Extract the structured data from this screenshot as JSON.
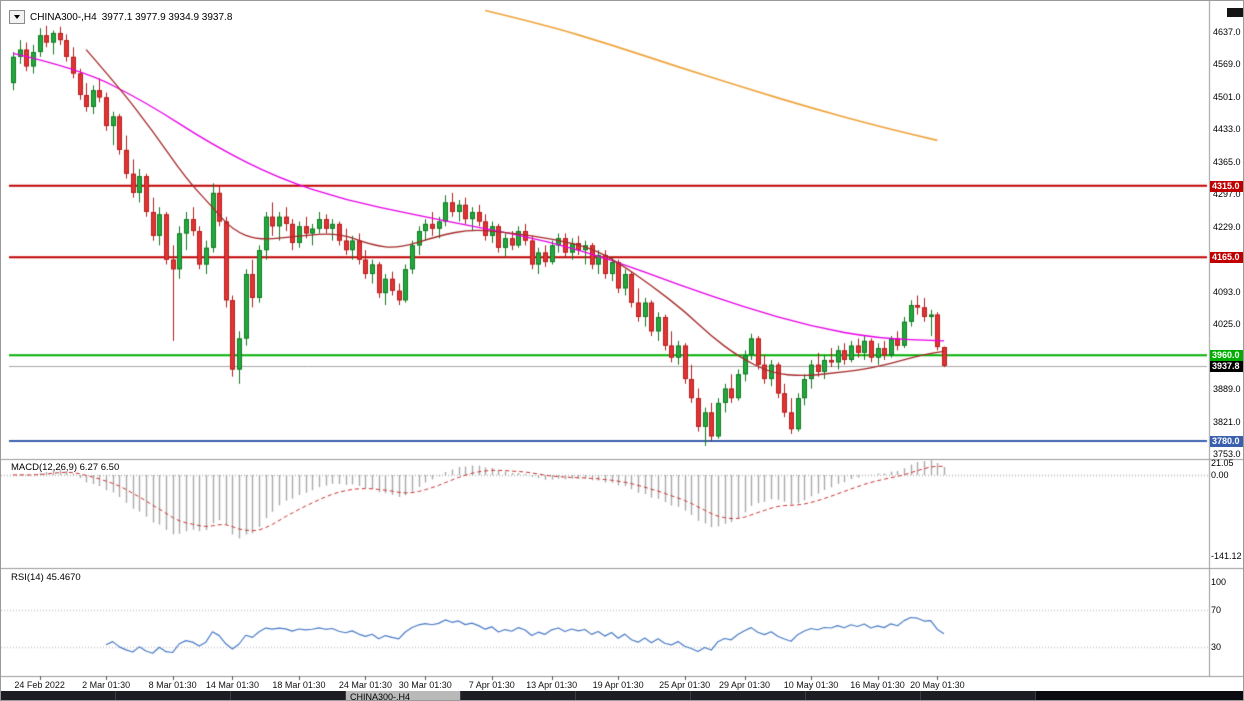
{
  "header": {
    "symbol": "CHINA300-,H4",
    "ohlc": "3977.1 3977.9 3934.9 3937.8"
  },
  "price_axis": {
    "values": [
      4637.0,
      4569.0,
      4501.0,
      4433.0,
      4365.0,
      4297.0,
      4229.0,
      4161.0,
      4093.0,
      4025.0,
      3957.0,
      3889.0,
      3821.0,
      3753.0
    ]
  },
  "taskbar": {
    "tabs": [
      {
        "label": "",
        "active": false
      },
      {
        "label": "",
        "active": false
      },
      {
        "label": "",
        "active": false
      },
      {
        "label": "CHINA300-,H4",
        "active": true
      },
      {
        "label": "",
        "active": false
      },
      {
        "label": "",
        "active": false
      },
      {
        "label": "",
        "active": false
      },
      {
        "label": "",
        "active": false
      },
      {
        "label": "",
        "active": false
      }
    ]
  },
  "chart_data": {
    "type": "candlestick",
    "title": "CHINA300-,H4",
    "ylim": [
      3753,
      4680
    ],
    "colors": {
      "up": "#22a93c",
      "up_border": "#147a24",
      "down": "#e23434",
      "down_border": "#b51f1f",
      "background": "#ffffff"
    },
    "levels": [
      {
        "price": 4315.0,
        "color": "#c00000"
      },
      {
        "price": 4165.0,
        "color": "#c00000"
      },
      {
        "price": 3960.0,
        "color": "#00ae00"
      },
      {
        "price": 3780.0,
        "color": "#3a5fad"
      }
    ],
    "current_price": 3937.8,
    "x_labels": [
      {
        "text": "24 Feb 2022",
        "i": 4
      },
      {
        "text": "2 Mar 01:30",
        "i": 14
      },
      {
        "text": "8 Mar 01:30",
        "i": 24
      },
      {
        "text": "14 Mar 01:30",
        "i": 33
      },
      {
        "text": "18 Mar 01:30",
        "i": 43
      },
      {
        "text": "24 Mar 01:30",
        "i": 53
      },
      {
        "text": "30 Mar 01:30",
        "i": 62
      },
      {
        "text": "7 Apr 01:30",
        "i": 72
      },
      {
        "text": "13 Apr 01:30",
        "i": 81
      },
      {
        "text": "19 Apr 01:30",
        "i": 91
      },
      {
        "text": "25 Apr 01:30",
        "i": 101
      },
      {
        "text": "29 Apr 01:30",
        "i": 110
      },
      {
        "text": "10 May 01:30",
        "i": 120
      },
      {
        "text": "16 May 01:30",
        "i": 130
      },
      {
        "text": "20 May 01:30",
        "i": 139
      }
    ],
    "candles": [
      [
        4530,
        4595,
        4515,
        4585
      ],
      [
        4585,
        4620,
        4570,
        4600
      ],
      [
        4600,
        4615,
        4555,
        4565
      ],
      [
        4565,
        4610,
        4550,
        4595
      ],
      [
        4595,
        4645,
        4585,
        4630
      ],
      [
        4630,
        4650,
        4605,
        4615
      ],
      [
        4615,
        4640,
        4590,
        4635
      ],
      [
        4635,
        4648,
        4610,
        4620
      ],
      [
        4620,
        4632,
        4575,
        4585
      ],
      [
        4585,
        4605,
        4540,
        4550
      ],
      [
        4550,
        4560,
        4495,
        4505
      ],
      [
        4505,
        4530,
        4470,
        4480
      ],
      [
        4480,
        4525,
        4465,
        4515
      ],
      [
        4515,
        4540,
        4490,
        4500
      ],
      [
        4500,
        4510,
        4430,
        4440
      ],
      [
        4440,
        4470,
        4400,
        4460
      ],
      [
        4460,
        4465,
        4380,
        4390
      ],
      [
        4390,
        4420,
        4330,
        4340
      ],
      [
        4340,
        4370,
        4290,
        4300
      ],
      [
        4300,
        4350,
        4280,
        4335
      ],
      [
        4335,
        4340,
        4250,
        4260
      ],
      [
        4260,
        4290,
        4200,
        4210
      ],
      [
        4210,
        4270,
        4190,
        4255
      ],
      [
        4255,
        4260,
        4150,
        4160
      ],
      [
        4160,
        4190,
        3990,
        4140
      ],
      [
        4140,
        4230,
        4120,
        4215
      ],
      [
        4215,
        4260,
        4180,
        4245
      ],
      [
        4245,
        4270,
        4210,
        4220
      ],
      [
        4220,
        4230,
        4140,
        4150
      ],
      [
        4150,
        4200,
        4130,
        4185
      ],
      [
        4185,
        4320,
        4175,
        4300
      ],
      [
        4300,
        4315,
        4230,
        4240
      ],
      [
        4240,
        4250,
        4060,
        4075
      ],
      [
        4075,
        4085,
        3915,
        3930
      ],
      [
        3930,
        4010,
        3900,
        3995
      ],
      [
        3995,
        4140,
        3980,
        4130
      ],
      [
        4130,
        4160,
        4060,
        4080
      ],
      [
        4080,
        4190,
        4070,
        4180
      ],
      [
        4180,
        4260,
        4160,
        4250
      ],
      [
        4250,
        4280,
        4210,
        4230
      ],
      [
        4230,
        4260,
        4200,
        4250
      ],
      [
        4250,
        4270,
        4220,
        4235
      ],
      [
        4235,
        4245,
        4180,
        4195
      ],
      [
        4195,
        4240,
        4185,
        4230
      ],
      [
        4230,
        4250,
        4205,
        4215
      ],
      [
        4215,
        4235,
        4190,
        4225
      ],
      [
        4225,
        4260,
        4215,
        4245
      ],
      [
        4245,
        4255,
        4215,
        4225
      ],
      [
        4225,
        4245,
        4200,
        4235
      ],
      [
        4235,
        4240,
        4190,
        4200
      ],
      [
        4200,
        4225,
        4170,
        4180
      ],
      [
        4180,
        4210,
        4160,
        4200
      ],
      [
        4200,
        4215,
        4150,
        4160
      ],
      [
        4160,
        4180,
        4120,
        4130
      ],
      [
        4130,
        4160,
        4110,
        4150
      ],
      [
        4150,
        4155,
        4080,
        4090
      ],
      [
        4090,
        4130,
        4065,
        4120
      ],
      [
        4120,
        4135,
        4085,
        4095
      ],
      [
        4095,
        4110,
        4065,
        4075
      ],
      [
        4075,
        4150,
        4070,
        4140
      ],
      [
        4140,
        4200,
        4130,
        4190
      ],
      [
        4190,
        4230,
        4170,
        4220
      ],
      [
        4220,
        4245,
        4200,
        4235
      ],
      [
        4235,
        4260,
        4210,
        4225
      ],
      [
        4225,
        4250,
        4205,
        4240
      ],
      [
        4240,
        4295,
        4230,
        4280
      ],
      [
        4280,
        4300,
        4250,
        4260
      ],
      [
        4260,
        4285,
        4240,
        4275
      ],
      [
        4275,
        4290,
        4235,
        4245
      ],
      [
        4245,
        4270,
        4220,
        4260
      ],
      [
        4260,
        4275,
        4230,
        4240
      ],
      [
        4240,
        4255,
        4200,
        4210
      ],
      [
        4210,
        4240,
        4195,
        4230
      ],
      [
        4230,
        4235,
        4175,
        4185
      ],
      [
        4185,
        4215,
        4165,
        4205
      ],
      [
        4205,
        4220,
        4180,
        4190
      ],
      [
        4190,
        4230,
        4185,
        4220
      ],
      [
        4220,
        4235,
        4190,
        4200
      ],
      [
        4200,
        4210,
        4140,
        4150
      ],
      [
        4150,
        4185,
        4130,
        4175
      ],
      [
        4175,
        4190,
        4145,
        4155
      ],
      [
        4155,
        4200,
        4150,
        4190
      ],
      [
        4190,
        4215,
        4175,
        4205
      ],
      [
        4205,
        4215,
        4165,
        4175
      ],
      [
        4175,
        4205,
        4160,
        4195
      ],
      [
        4195,
        4210,
        4170,
        4180
      ],
      [
        4180,
        4200,
        4150,
        4190
      ],
      [
        4190,
        4195,
        4140,
        4150
      ],
      [
        4150,
        4180,
        4130,
        4170
      ],
      [
        4170,
        4180,
        4120,
        4130
      ],
      [
        4130,
        4165,
        4115,
        4155
      ],
      [
        4155,
        4160,
        4090,
        4100
      ],
      [
        4100,
        4140,
        4085,
        4130
      ],
      [
        4130,
        4135,
        4060,
        4070
      ],
      [
        4070,
        4100,
        4030,
        4040
      ],
      [
        4040,
        4080,
        4020,
        4070
      ],
      [
        4070,
        4075,
        4000,
        4010
      ],
      [
        4010,
        4050,
        3990,
        4040
      ],
      [
        4040,
        4045,
        3970,
        3980
      ],
      [
        3980,
        4010,
        3945,
        3955
      ],
      [
        3955,
        3990,
        3940,
        3980
      ],
      [
        3980,
        3985,
        3900,
        3910
      ],
      [
        3910,
        3940,
        3860,
        3870
      ],
      [
        3870,
        3890,
        3800,
        3810
      ],
      [
        3810,
        3850,
        3770,
        3840
      ],
      [
        3840,
        3860,
        3780,
        3790
      ],
      [
        3790,
        3870,
        3785,
        3860
      ],
      [
        3860,
        3900,
        3840,
        3890
      ],
      [
        3890,
        3920,
        3860,
        3870
      ],
      [
        3870,
        3930,
        3865,
        3920
      ],
      [
        3920,
        3970,
        3905,
        3960
      ],
      [
        3960,
        4005,
        3950,
        3995
      ],
      [
        3995,
        4000,
        3930,
        3940
      ],
      [
        3940,
        3960,
        3900,
        3910
      ],
      [
        3910,
        3950,
        3895,
        3940
      ],
      [
        3940,
        3945,
        3870,
        3880
      ],
      [
        3880,
        3900,
        3830,
        3840
      ],
      [
        3840,
        3870,
        3795,
        3805
      ],
      [
        3805,
        3880,
        3800,
        3870
      ],
      [
        3870,
        3920,
        3855,
        3910
      ],
      [
        3910,
        3950,
        3890,
        3940
      ],
      [
        3940,
        3965,
        3915,
        3925
      ],
      [
        3925,
        3960,
        3910,
        3950
      ],
      [
        3950,
        3975,
        3935,
        3945
      ],
      [
        3945,
        3980,
        3930,
        3970
      ],
      [
        3970,
        3985,
        3940,
        3950
      ],
      [
        3950,
        3990,
        3945,
        3980
      ],
      [
        3980,
        3995,
        3955,
        3965
      ],
      [
        3965,
        4000,
        3950,
        3990
      ],
      [
        3990,
        3995,
        3945,
        3955
      ],
      [
        3955,
        3985,
        3940,
        3975
      ],
      [
        3975,
        3990,
        3950,
        3960
      ],
      [
        3960,
        4000,
        3955,
        3995
      ],
      [
        3995,
        4010,
        3970,
        3980
      ],
      [
        3980,
        4040,
        3975,
        4030
      ],
      [
        4030,
        4075,
        4020,
        4065
      ],
      [
        4065,
        4085,
        4045,
        4060
      ],
      [
        4060,
        4080,
        4030,
        4040
      ],
      [
        4040,
        4055,
        4000,
        4045
      ],
      [
        4045,
        4050,
        3970,
        3977
      ],
      [
        3977.1,
        3977.9,
        3934.9,
        3937.8
      ]
    ],
    "overlays": [
      {
        "name": "ma-magenta",
        "color": "#e800e8",
        "width": 1.3,
        "points": [
          [
            0,
            4592
          ],
          [
            10,
            4560
          ],
          [
            20,
            4490
          ],
          [
            30,
            4400
          ],
          [
            40,
            4330
          ],
          [
            50,
            4285
          ],
          [
            60,
            4255
          ],
          [
            70,
            4228
          ],
          [
            80,
            4200
          ],
          [
            90,
            4160
          ],
          [
            100,
            4108
          ],
          [
            110,
            4060
          ],
          [
            120,
            4020
          ],
          [
            130,
            3995
          ],
          [
            140,
            3990
          ]
        ]
      },
      {
        "name": "ma-dark-red",
        "color": "#a52a2a",
        "width": 1.3,
        "points": [
          [
            11,
            4600
          ],
          [
            16,
            4520
          ],
          [
            21,
            4430
          ],
          [
            26,
            4330
          ],
          [
            30,
            4270
          ],
          [
            33,
            4222
          ],
          [
            37,
            4200
          ],
          [
            43,
            4210
          ],
          [
            49,
            4216
          ],
          [
            54,
            4190
          ],
          [
            58,
            4184
          ],
          [
            64,
            4210
          ],
          [
            69,
            4224
          ],
          [
            75,
            4216
          ],
          [
            81,
            4204
          ],
          [
            87,
            4184
          ],
          [
            91,
            4154
          ],
          [
            96,
            4106
          ],
          [
            101,
            4052
          ],
          [
            105,
            4000
          ],
          [
            109,
            3958
          ],
          [
            114,
            3922
          ],
          [
            119,
            3916
          ],
          [
            123,
            3922
          ],
          [
            128,
            3930
          ],
          [
            132,
            3943
          ],
          [
            137,
            3962
          ],
          [
            140,
            3968
          ]
        ]
      },
      {
        "name": "ma-orange",
        "color": "#f0a43c",
        "width": 1.6,
        "points": [
          [
            71,
            4682
          ],
          [
            80,
            4652
          ],
          [
            90,
            4610
          ],
          [
            100,
            4564
          ],
          [
            110,
            4520
          ],
          [
            120,
            4478
          ],
          [
            130,
            4440
          ],
          [
            139,
            4410
          ]
        ]
      }
    ],
    "macd": {
      "label": "MACD(12,26,9) 6.27 6.50",
      "fast": 12,
      "slow": 26,
      "signal": 9,
      "axis": [
        "21.05",
        "0.00",
        "-141.12"
      ],
      "histogram_color": "#aaaaaa",
      "signal_color": "#cc3333"
    },
    "rsi": {
      "label": "RSI(14) 45.4670",
      "period": 14,
      "value": 45.467,
      "levels": [
        70,
        30
      ],
      "axis": [
        "100",
        "70",
        "30"
      ],
      "line_color": "#4a7cc7"
    }
  }
}
